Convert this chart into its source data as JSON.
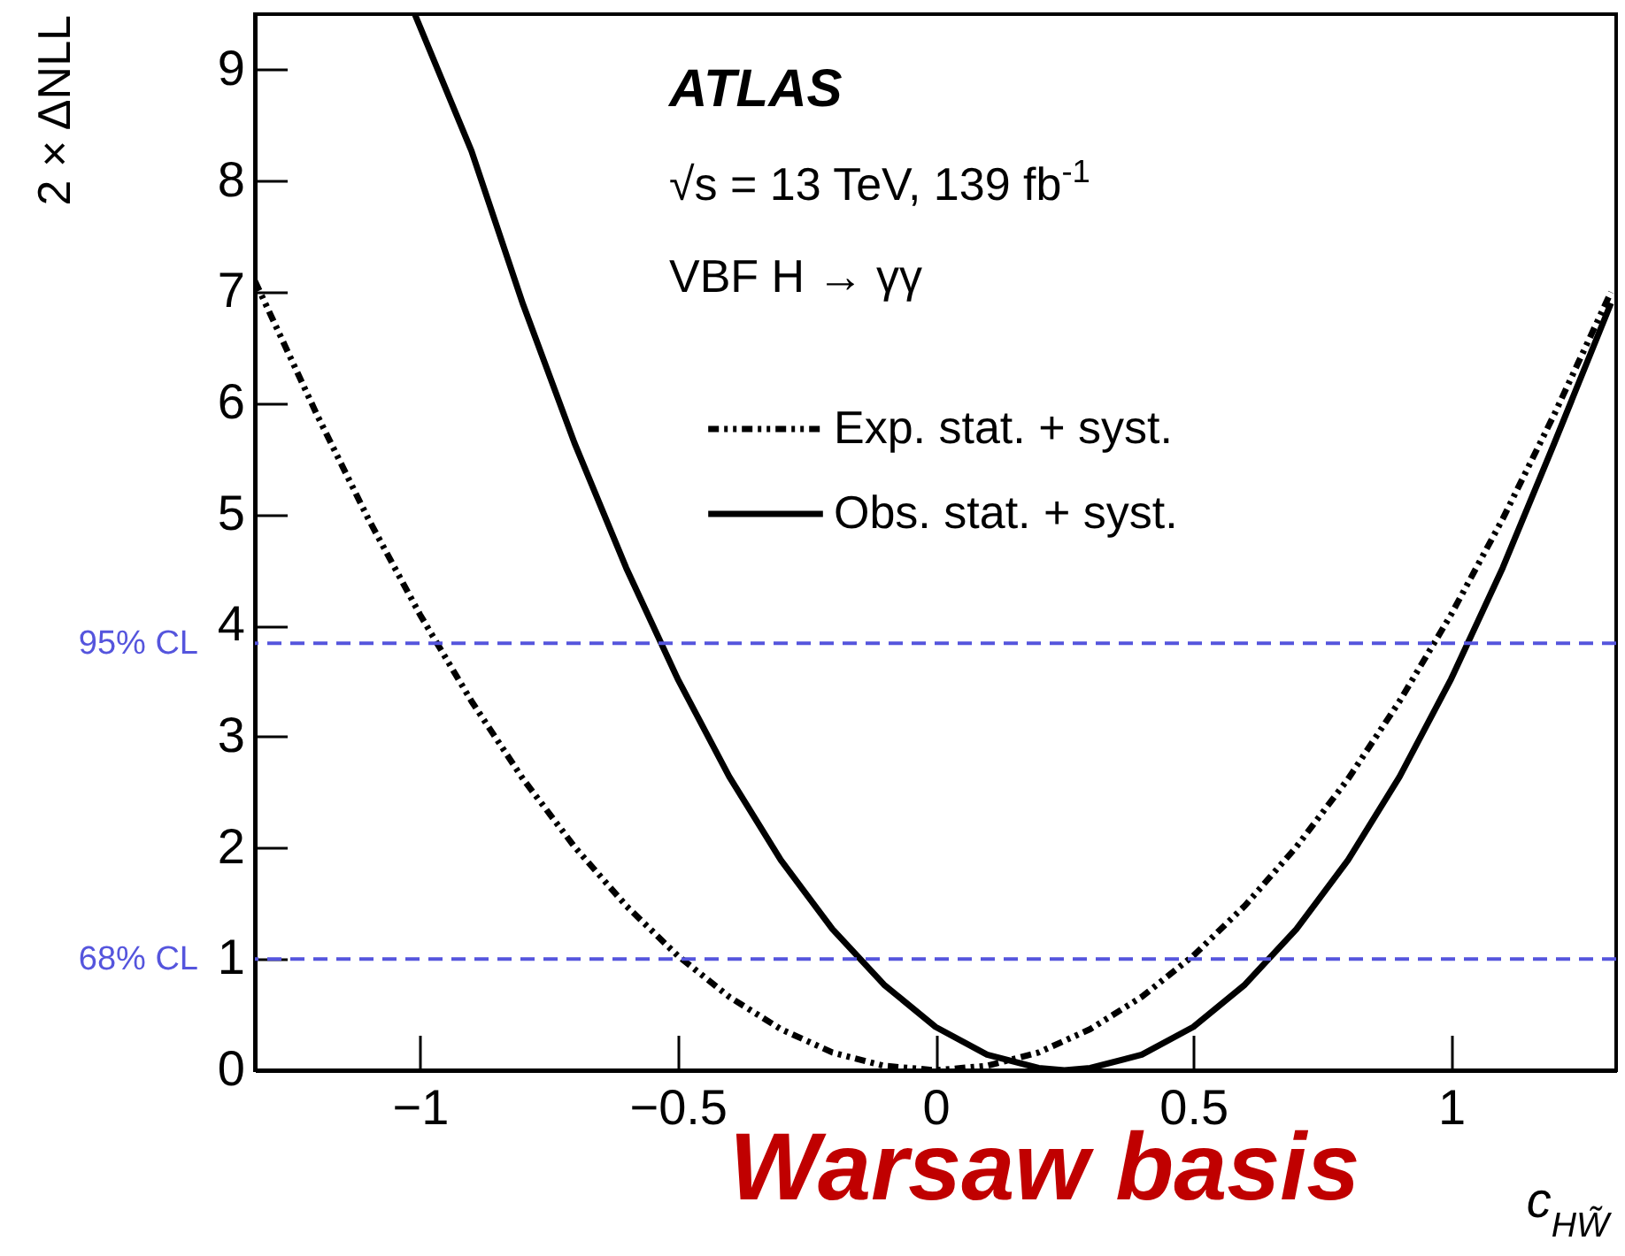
{
  "chart_data": {
    "type": "line",
    "xlabel": "c$_{HW̃}$",
    "ylabel": "2 × ΔNLL",
    "annotations": [
      "ATLAS",
      "√s = 13 TeV, 139 fb$^{-1}$",
      "VBF H → γγ",
      "Warsaw basis"
    ],
    "xlim": [
      -1.32,
      1.32
    ],
    "ylim": [
      0,
      9.5
    ],
    "xticks": [
      {
        "value": -1,
        "label": "−1"
      },
      {
        "value": -0.5,
        "label": "−0.5"
      },
      0,
      0.5,
      1
    ],
    "yticks": [
      0,
      1,
      2,
      3,
      4,
      5,
      6,
      7,
      8,
      9
    ],
    "legend": "top right",
    "grid": false,
    "series": [
      {
        "name": "Exp. stat. + syst.",
        "color": "#000000",
        "line_style": "dotted",
        "x": [
          -1.32,
          -1.2,
          -1.1,
          -1.0,
          -0.9,
          -0.8,
          -0.7,
          -0.6,
          -0.5,
          -0.4,
          -0.3,
          -0.2,
          -0.1,
          0,
          0.1,
          0.2,
          0.3,
          0.4,
          0.5,
          0.6,
          0.7,
          0.8,
          0.9,
          1.0,
          1.1,
          1.2,
          1.31
        ],
        "values": [
          7.1,
          5.9,
          4.96,
          4.1,
          3.32,
          2.62,
          2.01,
          1.48,
          1.03,
          0.66,
          0.37,
          0.16,
          0.04,
          0,
          0.04,
          0.16,
          0.37,
          0.66,
          1.03,
          1.48,
          2.01,
          2.62,
          3.32,
          4.1,
          4.96,
          5.9,
          7.0
        ]
      },
      {
        "name": "Obs. stat. + syst.",
        "color": "#000000",
        "line_style": "solid",
        "x": [
          -1.01,
          -0.9,
          -0.8,
          -0.7,
          -0.6,
          -0.5,
          -0.4,
          -0.3,
          -0.2,
          -0.1,
          0,
          0.1,
          0.2,
          0.25,
          0.3,
          0.4,
          0.5,
          0.6,
          0.7,
          0.8,
          0.9,
          1.0,
          1.1,
          1.2,
          1.31
        ],
        "values": [
          9.5,
          8.27,
          6.89,
          5.64,
          4.52,
          3.52,
          2.64,
          1.89,
          1.27,
          0.77,
          0.39,
          0.14,
          0.02,
          0,
          0.02,
          0.14,
          0.39,
          0.77,
          1.27,
          1.89,
          2.64,
          3.52,
          4.52,
          5.64,
          6.9
        ]
      }
    ],
    "ref_lines": [
      {
        "axis": "y",
        "value": 3.84,
        "label": "95% CL",
        "color": "#5555dd",
        "line_style": "dashed"
      },
      {
        "axis": "y",
        "value": 1,
        "label": "68% CL",
        "color": "#5555dd",
        "line_style": "dashed"
      }
    ]
  }
}
